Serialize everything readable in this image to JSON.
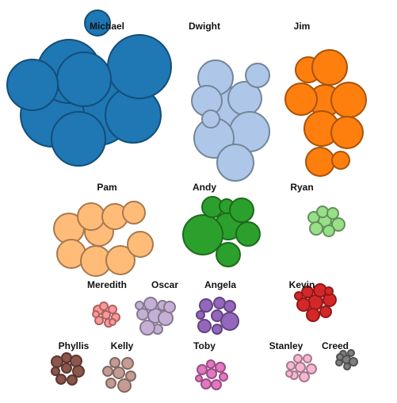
{
  "chart_data": {
    "type": "packed-bubble",
    "groups": [
      {
        "name": "Michael",
        "color": "#1f77b4",
        "stroke": "#144e78",
        "bubbles": [
          [
            0,
            0,
            43
          ],
          [
            -58,
            5,
            40
          ],
          [
            -37,
            -50,
            40
          ],
          [
            44,
            5,
            35
          ],
          [
            -25,
            35,
            34
          ],
          [
            52,
            -56,
            40
          ],
          [
            -1,
            -111,
            16
          ],
          [
            -18,
            -40,
            34
          ],
          [
            -83,
            -33,
            32
          ]
        ]
      },
      {
        "name": "Dwight",
        "color": "#aec7e8",
        "stroke": "#74869c",
        "bubbles": [
          [
            0,
            0,
            26
          ],
          [
            -18,
            -38,
            22
          ],
          [
            19,
            -12,
            21
          ],
          [
            35,
            -41,
            15
          ],
          [
            -29,
            -9,
            19
          ],
          [
            25,
            30,
            25
          ],
          [
            -20,
            38,
            25
          ],
          [
            7,
            69,
            23
          ],
          [
            -24,
            14,
            11
          ]
        ]
      },
      {
        "name": "Jim",
        "color": "#ff7f0e",
        "stroke": "#a9530a",
        "bubbles": [
          [
            0,
            0,
            20
          ],
          [
            -21,
            -39,
            16
          ],
          [
            6,
            -42,
            22
          ],
          [
            30,
            -1,
            22
          ],
          [
            -30,
            -2,
            20
          ],
          [
            -4,
            35,
            22
          ],
          [
            28,
            40,
            20
          ],
          [
            -6,
            77,
            18
          ],
          [
            20,
            75,
            11
          ]
        ]
      },
      {
        "name": "Pam",
        "color": "#ffbb78",
        "stroke": "#a67a4e",
        "bubbles": [
          [
            0,
            0,
            18
          ],
          [
            -38,
            -4,
            19
          ],
          [
            -10,
            -19,
            17
          ],
          [
            20,
            -19,
            16
          ],
          [
            44,
            -24,
            14
          ],
          [
            -35,
            28,
            18
          ],
          [
            -4,
            37,
            19
          ],
          [
            27,
            36,
            18
          ],
          [
            52,
            16,
            16
          ]
        ]
      },
      {
        "name": "Andy",
        "color": "#2ca02c",
        "stroke": "#1d6a1d",
        "bubbles": [
          [
            0,
            0,
            17
          ],
          [
            -32,
            11,
            25
          ],
          [
            -20,
            -24,
            13
          ],
          [
            -2,
            -25,
            9
          ],
          [
            17,
            -20,
            15
          ],
          [
            25,
            10,
            15
          ],
          [
            0,
            36,
            15
          ]
        ]
      },
      {
        "name": "Ryan",
        "color": "#98df8a",
        "stroke": "#62905a",
        "bubbles": [
          [
            0,
            0,
            8
          ],
          [
            -14,
            -4,
            7
          ],
          [
            -3,
            -11,
            7
          ],
          [
            10,
            -9,
            7
          ],
          [
            17,
            5,
            8
          ],
          [
            5,
            13,
            7
          ],
          [
            -11,
            10,
            8
          ]
        ]
      },
      {
        "name": "Meredith",
        "color": "#ff9896",
        "stroke": "#a86361",
        "bubbles": [
          [
            0,
            0,
            5
          ],
          [
            -10,
            -6,
            6
          ],
          [
            -3,
            -11,
            5
          ],
          [
            8,
            -7,
            5
          ],
          [
            12,
            3,
            5
          ],
          [
            3,
            10,
            5
          ],
          [
            -9,
            7,
            5
          ],
          [
            -13,
            -1,
            4
          ],
          [
            8,
            9,
            4
          ]
        ]
      },
      {
        "name": "Oscar",
        "color": "#c5b0d5",
        "stroke": "#86788f",
        "bubbles": [
          [
            0,
            0,
            9
          ],
          [
            -16,
            -2,
            7
          ],
          [
            -6,
            -15,
            8
          ],
          [
            9,
            -13,
            6
          ],
          [
            13,
            3,
            9
          ],
          [
            3,
            17,
            6
          ],
          [
            -10,
            15,
            9
          ],
          [
            -20,
            -13,
            5
          ],
          [
            18,
            -11,
            7
          ]
        ]
      },
      {
        "name": "Angela",
        "color": "#9467bd",
        "stroke": "#62447e",
        "bubbles": [
          [
            0,
            0,
            7
          ],
          [
            -14,
            -13,
            8
          ],
          [
            3,
            -16,
            7
          ],
          [
            16,
            -12,
            7
          ],
          [
            16,
            7,
            11
          ],
          [
            0,
            17,
            6
          ],
          [
            -16,
            13,
            8
          ],
          [
            -21,
            -1,
            5
          ]
        ]
      },
      {
        "name": "Kevin",
        "color": "#d62728",
        "stroke": "#8f1a1b",
        "bubbles": [
          [
            0,
            0,
            9
          ],
          [
            -15,
            3,
            8
          ],
          [
            -10,
            -13,
            7
          ],
          [
            6,
            -15,
            8
          ],
          [
            18,
            -3,
            8
          ],
          [
            13,
            12,
            7
          ],
          [
            -3,
            16,
            8
          ],
          [
            -21,
            -8,
            5
          ],
          [
            17,
            -14,
            5
          ]
        ]
      },
      {
        "name": "Phyllis",
        "color": "#8c564b",
        "stroke": "#5a3730",
        "bubbles": [
          [
            0,
            0,
            6
          ],
          [
            -12,
            -8,
            7
          ],
          [
            0,
            -13,
            6
          ],
          [
            12,
            -9,
            7
          ],
          [
            15,
            4,
            7
          ],
          [
            7,
            15,
            6
          ],
          [
            -7,
            14,
            6
          ],
          [
            -14,
            4,
            5
          ]
        ]
      },
      {
        "name": "Kelly",
        "color": "#c49c94",
        "stroke": "#836761",
        "bubbles": [
          [
            0,
            0,
            7
          ],
          [
            -14,
            -2,
            6
          ],
          [
            -5,
            -13,
            6
          ],
          [
            11,
            -12,
            7
          ],
          [
            15,
            4,
            6
          ],
          [
            7,
            16,
            8
          ],
          [
            -10,
            13,
            6
          ]
        ]
      },
      {
        "name": "Toby",
        "color": "#e377c2",
        "stroke": "#984f82",
        "bubbles": [
          [
            0,
            0,
            6
          ],
          [
            -12,
            -5,
            6
          ],
          [
            -1,
            -12,
            5
          ],
          [
            11,
            -8,
            6
          ],
          [
            15,
            4,
            5
          ],
          [
            6,
            14,
            6
          ],
          [
            -7,
            13,
            6
          ],
          [
            -16,
            6,
            4
          ]
        ]
      },
      {
        "name": "Stanley",
        "color": "#f7b6d2",
        "stroke": "#a57a8c",
        "bubbles": [
          [
            0,
            0,
            6
          ],
          [
            -12,
            -2,
            5
          ],
          [
            -3,
            -11,
            5
          ],
          [
            9,
            -11,
            5
          ],
          [
            14,
            2,
            6
          ],
          [
            5,
            12,
            6
          ],
          [
            -8,
            10,
            5
          ],
          [
            -14,
            8,
            4
          ]
        ]
      },
      {
        "name": "Creed",
        "color": "#7f7f7f",
        "stroke": "#505050",
        "bubbles": [
          [
            0,
            0,
            5
          ],
          [
            -9,
            4,
            4
          ],
          [
            -4,
            -7,
            4
          ],
          [
            6,
            -8,
            4
          ],
          [
            9,
            3,
            5
          ],
          [
            1,
            9,
            4
          ],
          [
            -8,
            -3,
            4
          ]
        ]
      }
    ]
  }
}
